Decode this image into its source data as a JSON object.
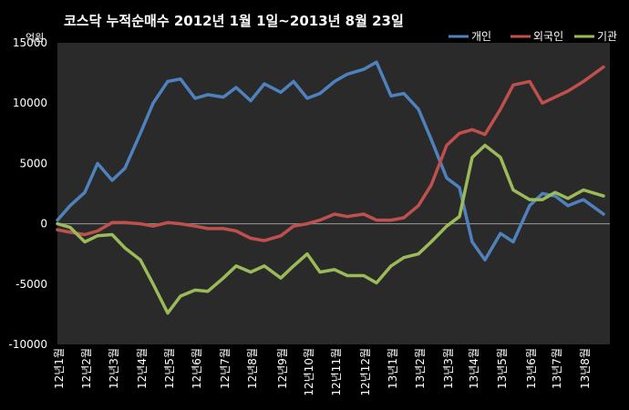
{
  "chart_data": {
    "type": "line",
    "title": "코스닥 누적순매수 2012년 1월 1일~2013년 8월 23일",
    "unit": "억원",
    "ylim": [
      -10000,
      15000
    ],
    "y_ticks": [
      15000,
      10000,
      5000,
      0,
      -5000,
      -10000
    ],
    "x_ticks": [
      "12년1월",
      "12년2월",
      "12년3월",
      "12년4월",
      "12년5월",
      "12년6월",
      "12년7월",
      "12년8월",
      "12년9월",
      "12년10월",
      "12년11월",
      "12년12월",
      "13년1월",
      "13년2월",
      "13년3월",
      "13년4월",
      "13년5월",
      "13년6월",
      "13년7월",
      "13년8월"
    ],
    "legend_position": "top-right",
    "grid": false,
    "x": [
      "2012-01-02",
      "2012-01-16",
      "2012-02-01",
      "2012-02-15",
      "2012-03-02",
      "2012-03-16",
      "2012-04-02",
      "2012-04-16",
      "2012-05-02",
      "2012-05-16",
      "2012-06-01",
      "2012-06-15",
      "2012-07-02",
      "2012-07-16",
      "2012-08-01",
      "2012-08-16",
      "2012-09-03",
      "2012-09-17",
      "2012-10-02",
      "2012-10-16",
      "2012-11-01",
      "2012-11-15",
      "2012-12-03",
      "2012-12-17",
      "2013-01-02",
      "2013-01-16",
      "2013-02-01",
      "2013-02-15",
      "2013-03-04",
      "2013-03-18",
      "2013-04-01",
      "2013-04-15",
      "2013-05-02",
      "2013-05-16",
      "2013-06-03",
      "2013-06-17",
      "2013-07-01",
      "2013-07-15",
      "2013-08-01",
      "2013-08-23"
    ],
    "series": [
      {
        "name": "개인",
        "color": "#4f81bd",
        "values": [
          300,
          1500,
          2600,
          5000,
          3600,
          4600,
          7500,
          10000,
          11800,
          12000,
          10400,
          10700,
          10500,
          11300,
          10200,
          11600,
          10900,
          11800,
          10400,
          10800,
          11800,
          12400,
          12800,
          13400,
          10600,
          10800,
          9500,
          7000,
          3800,
          3000,
          -1500,
          -3000,
          -800,
          -1500,
          1500,
          2500,
          2300,
          1500,
          2000,
          800
        ]
      },
      {
        "name": "외국인",
        "color": "#c0504d",
        "values": [
          -500,
          -700,
          -900,
          -600,
          100,
          100,
          0,
          -200,
          100,
          0,
          -200,
          -400,
          -400,
          -600,
          -1200,
          -1400,
          -1000,
          -200,
          0,
          300,
          800,
          600,
          800,
          300,
          300,
          500,
          1500,
          3200,
          6500,
          7500,
          7800,
          7400,
          9500,
          11500,
          11800,
          10000,
          10500,
          11000,
          11800,
          13000
        ]
      },
      {
        "name": "기관",
        "color": "#9bbb59",
        "values": [
          0,
          -300,
          -1500,
          -1000,
          -900,
          -2000,
          -3000,
          -5000,
          -7400,
          -6000,
          -5500,
          -5600,
          -4500,
          -3500,
          -4000,
          -3500,
          -4500,
          -3500,
          -2500,
          -4000,
          -3800,
          -4300,
          -4300,
          -4900,
          -3500,
          -2800,
          -2500,
          -1500,
          -200,
          600,
          5500,
          6500,
          5500,
          2800,
          2000,
          2000,
          2600,
          2100,
          2800,
          2300
        ]
      }
    ]
  }
}
